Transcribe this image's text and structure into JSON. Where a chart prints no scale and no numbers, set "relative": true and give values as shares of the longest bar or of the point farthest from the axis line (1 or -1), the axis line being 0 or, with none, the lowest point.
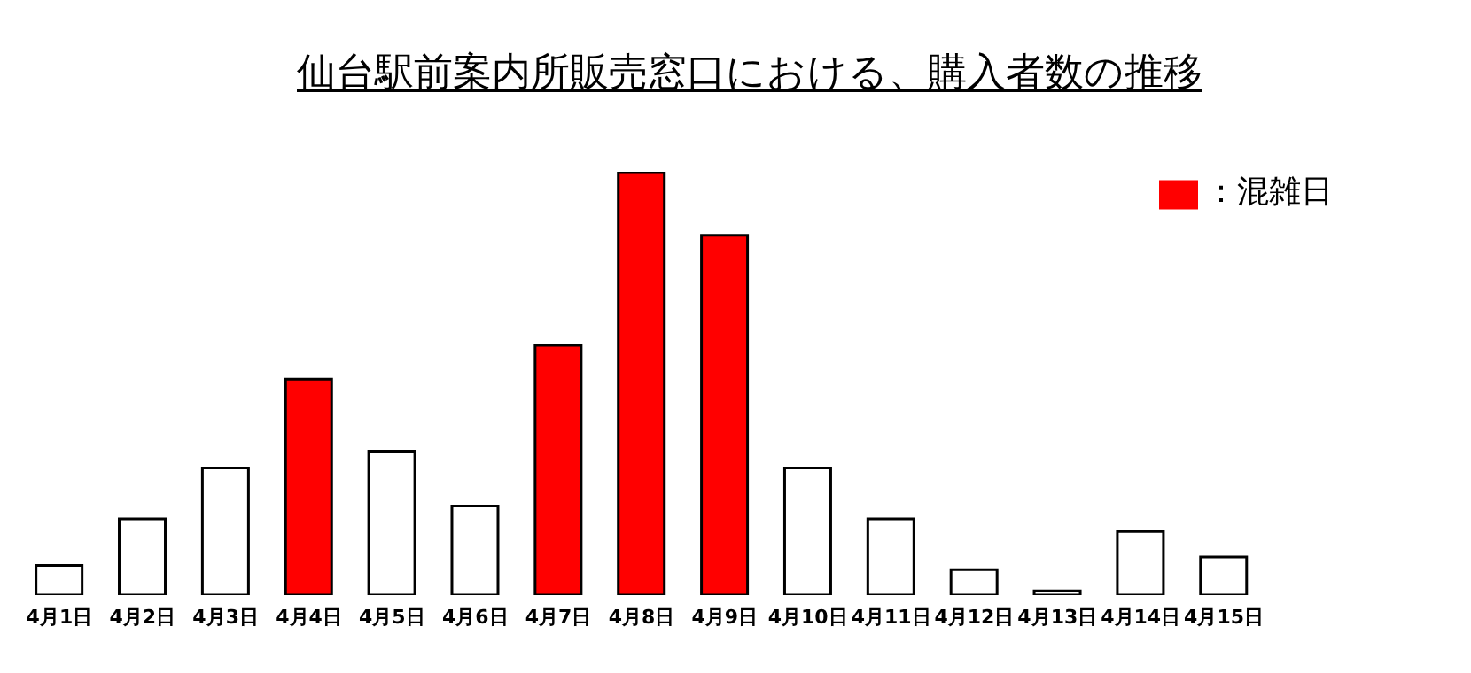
{
  "chart_data": {
    "type": "bar",
    "title": "仙台駅前案内所販売窓口における、購入者数の推移",
    "relative": true,
    "stacked": true,
    "legend": "top right",
    "grid": false,
    "categories": [
      "4月1日",
      "4月2日",
      "4月3日",
      "4月4日",
      "4月5日",
      "4月6日",
      "4月7日",
      "4月8日",
      "4月9日",
      "4月10日",
      "4月11日",
      "4月12日",
      "4月13日",
      "4月14日",
      "4月15日"
    ],
    "series": [
      {
        "name": "：混雑日",
        "color": "#ff0000",
        "values": [
          null,
          null,
          null,
          0.51,
          null,
          null,
          0.59,
          1,
          0.85,
          null,
          null,
          null,
          null,
          null,
          null
        ]
      },
      {
        "color": "#ffffff",
        "values": [
          0.07,
          0.18,
          0.3,
          null,
          0.34,
          0.21,
          null,
          null,
          null,
          0.3,
          0.18,
          0.06,
          0.01,
          0.15,
          0.09
        ]
      }
    ]
  }
}
